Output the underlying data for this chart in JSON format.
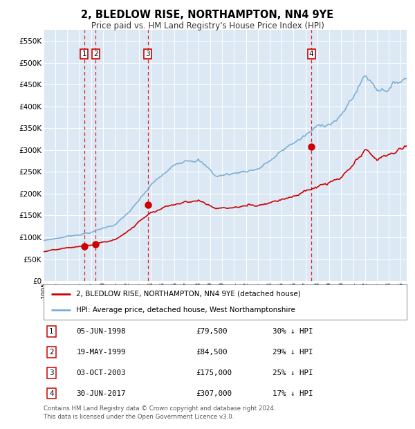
{
  "title": "2, BLEDLOW RISE, NORTHAMPTON, NN4 9YE",
  "subtitle": "Price paid vs. HM Land Registry's House Price Index (HPI)",
  "title_fontsize": 10.5,
  "subtitle_fontsize": 8.5,
  "background_color": "#ffffff",
  "plot_bg_color": "#dce9f5",
  "grid_color": "#ffffff",
  "hpi_color": "#7bafd4",
  "price_color": "#cc0000",
  "ylim": [
    0,
    575000
  ],
  "yticks": [
    0,
    50000,
    100000,
    150000,
    200000,
    250000,
    300000,
    350000,
    400000,
    450000,
    500000,
    550000
  ],
  "ytick_labels": [
    "£0",
    "£50K",
    "£100K",
    "£150K",
    "£200K",
    "£250K",
    "£300K",
    "£350K",
    "£400K",
    "£450K",
    "£500K",
    "£550K"
  ],
  "transactions": [
    {
      "label": "1",
      "date_x": 1998.42,
      "price": 79500
    },
    {
      "label": "2",
      "date_x": 1999.37,
      "price": 84500
    },
    {
      "label": "3",
      "date_x": 2003.75,
      "price": 175000
    },
    {
      "label": "4",
      "date_x": 2017.49,
      "price": 307000
    }
  ],
  "legend_entries": [
    {
      "label": "2, BLEDLOW RISE, NORTHAMPTON, NN4 9YE (detached house)",
      "color": "#cc0000",
      "lw": 2
    },
    {
      "label": "HPI: Average price, detached house, West Northamptonshire",
      "color": "#7bafd4",
      "lw": 2
    }
  ],
  "table_rows": [
    {
      "num": "1",
      "date": "05-JUN-1998",
      "price": "£79,500",
      "hpi": "30% ↓ HPI"
    },
    {
      "num": "2",
      "date": "19-MAY-1999",
      "price": "£84,500",
      "hpi": "29% ↓ HPI"
    },
    {
      "num": "3",
      "date": "03-OCT-2003",
      "price": "£175,000",
      "hpi": "25% ↓ HPI"
    },
    {
      "num": "4",
      "date": "30-JUN-2017",
      "price": "£307,000",
      "hpi": "17% ↓ HPI"
    }
  ],
  "footer": "Contains HM Land Registry data © Crown copyright and database right 2024.\nThis data is licensed under the Open Government Licence v3.0.",
  "xmin": 1995.0,
  "xmax": 2025.5
}
